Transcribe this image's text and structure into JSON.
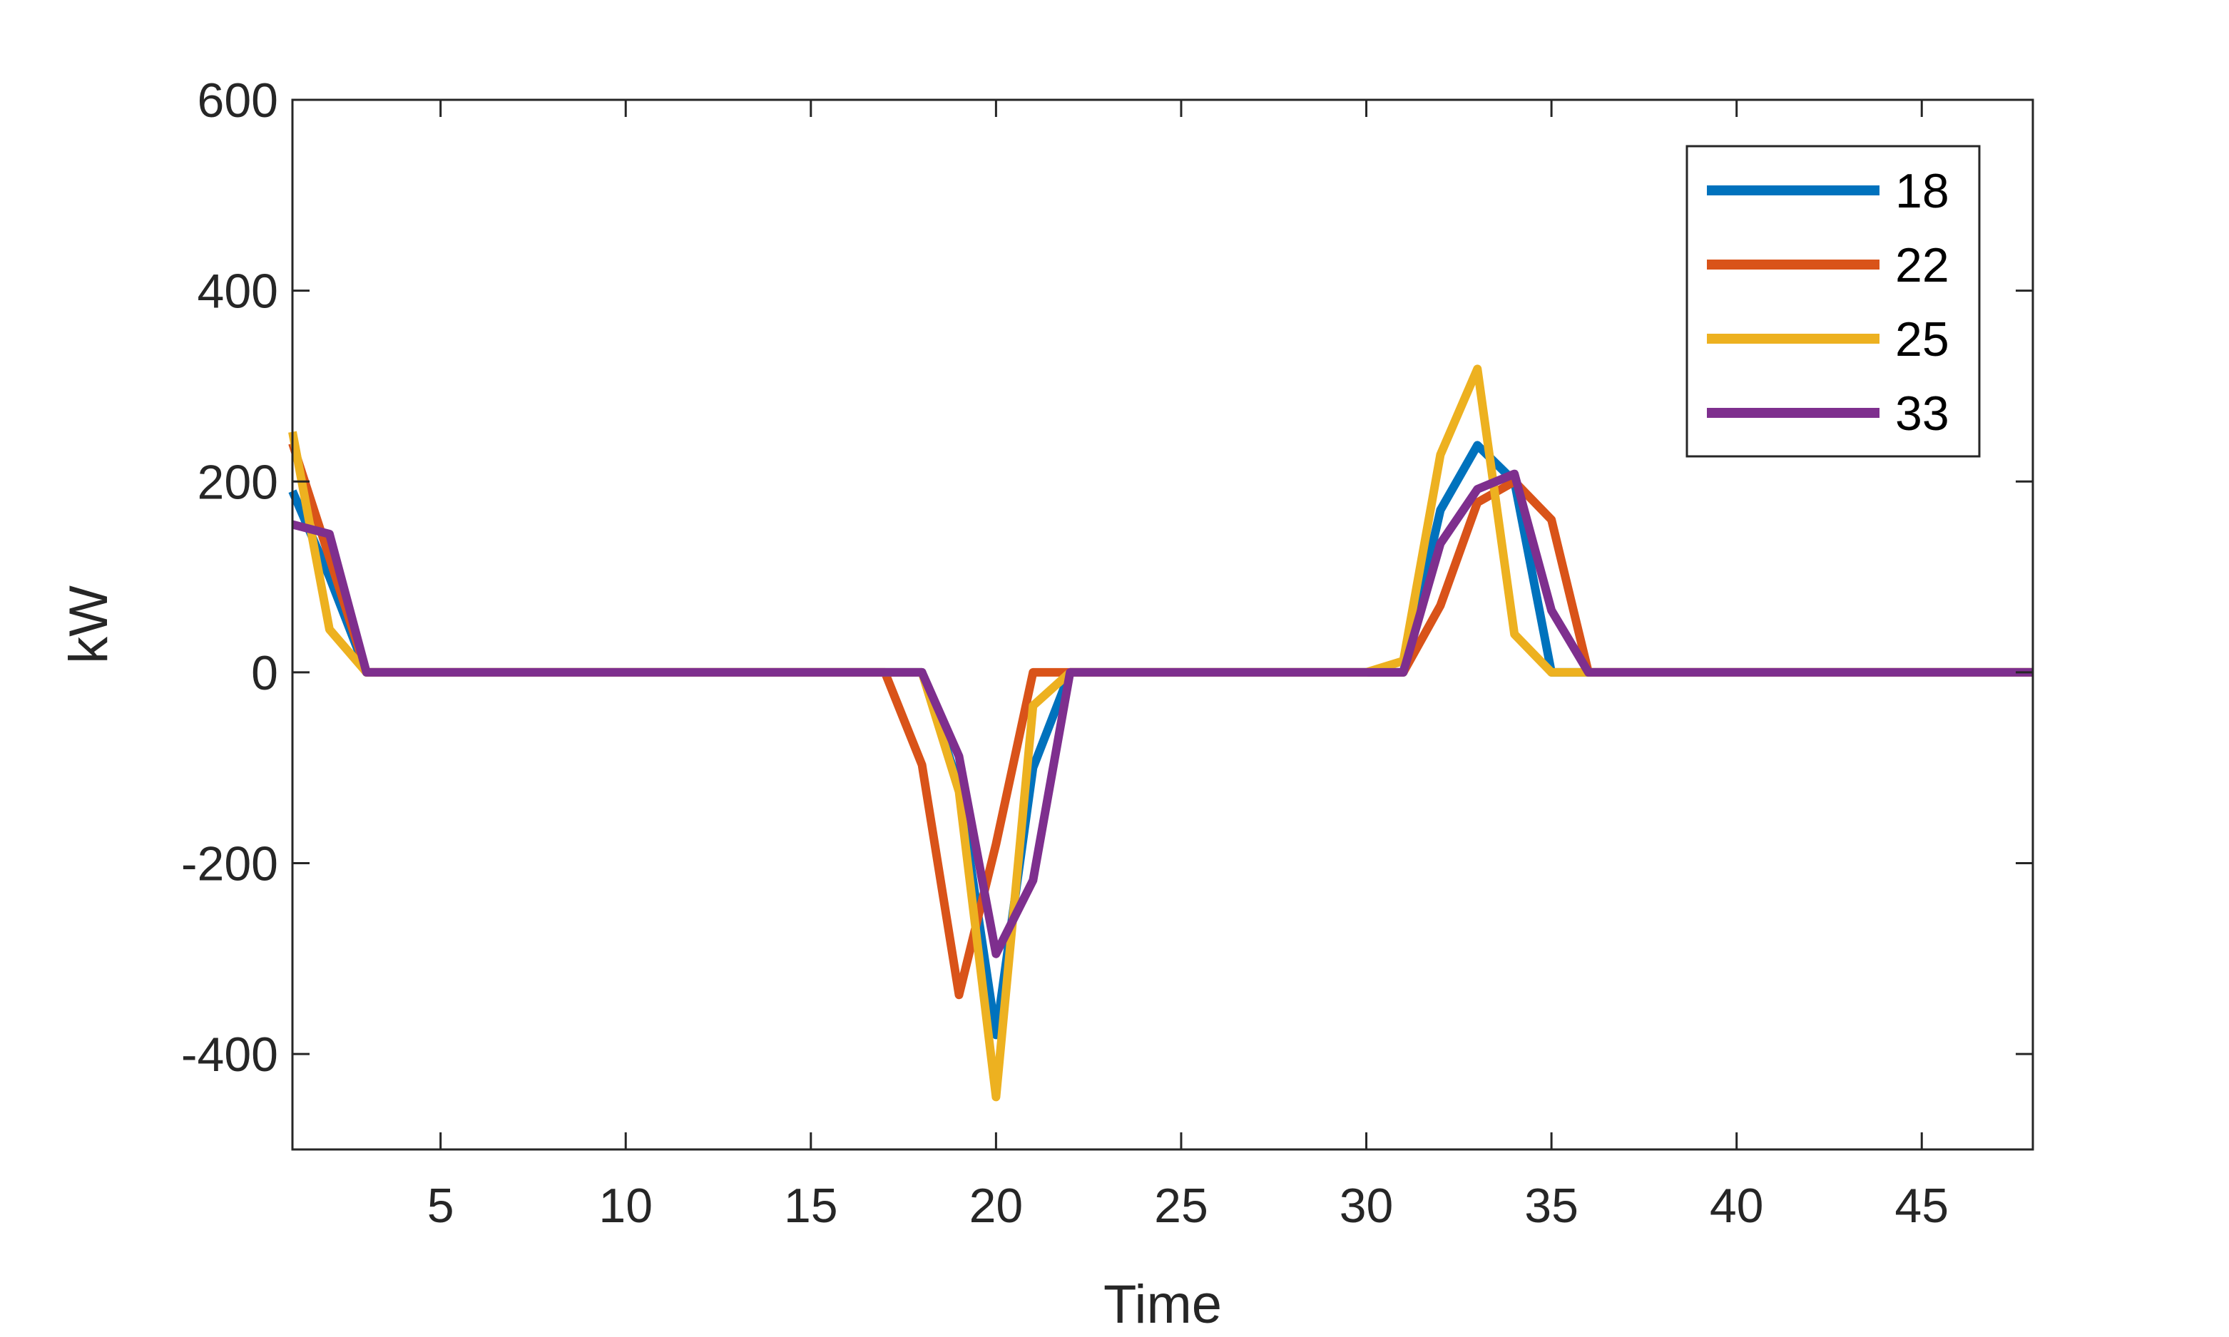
{
  "chart_data": {
    "type": "line",
    "title": "",
    "xlabel": "Time",
    "ylabel": "kW",
    "xlim": [
      1,
      48
    ],
    "ylim": [
      -500,
      600
    ],
    "xticks": [
      5,
      10,
      15,
      20,
      25,
      30,
      35,
      40,
      45
    ],
    "yticks": [
      -400,
      -200,
      0,
      200,
      400,
      600
    ],
    "grid": false,
    "legend_position": "top-right",
    "x": [
      1,
      2,
      3,
      4,
      5,
      6,
      7,
      8,
      9,
      10,
      11,
      12,
      13,
      14,
      15,
      16,
      17,
      18,
      19,
      20,
      21,
      22,
      23,
      24,
      25,
      26,
      27,
      28,
      29,
      30,
      31,
      32,
      33,
      34,
      35,
      36,
      37,
      38,
      39,
      40,
      41,
      42,
      43,
      44,
      45,
      46,
      47,
      48
    ],
    "series": [
      {
        "name": "18",
        "color": "#0072BD",
        "values": [
          190,
          100,
          0,
          0,
          0,
          0,
          0,
          0,
          0,
          0,
          0,
          0,
          0,
          0,
          0,
          0,
          0,
          0,
          -120,
          -380,
          -100,
          0,
          0,
          0,
          0,
          0,
          0,
          0,
          0,
          0,
          0,
          170,
          238,
          200,
          0,
          0,
          0,
          0,
          0,
          0,
          0,
          0,
          0,
          0,
          0,
          0,
          0,
          0
        ]
      },
      {
        "name": "22",
        "color": "#D95319",
        "values": [
          240,
          120,
          0,
          0,
          0,
          0,
          0,
          0,
          0,
          0,
          0,
          0,
          0,
          0,
          0,
          0,
          0,
          -97,
          -338,
          -180,
          0,
          0,
          0,
          0,
          0,
          0,
          0,
          0,
          0,
          0,
          0,
          70,
          178,
          200,
          160,
          0,
          0,
          0,
          0,
          0,
          0,
          0,
          0,
          0,
          0,
          0,
          0,
          0
        ]
      },
      {
        "name": "25",
        "color": "#EDB120",
        "values": [
          252,
          45,
          0,
          0,
          0,
          0,
          0,
          0,
          0,
          0,
          0,
          0,
          0,
          0,
          0,
          0,
          0,
          0,
          -125,
          -445,
          -35,
          0,
          0,
          0,
          0,
          0,
          0,
          0,
          0,
          0,
          12,
          228,
          318,
          40,
          0,
          0,
          0,
          0,
          0,
          0,
          0,
          0,
          0,
          0,
          0,
          0,
          0,
          0
        ]
      },
      {
        "name": "33",
        "color": "#7E2F8E",
        "values": [
          155,
          145,
          0,
          0,
          0,
          0,
          0,
          0,
          0,
          0,
          0,
          0,
          0,
          0,
          0,
          0,
          0,
          0,
          -88,
          -295,
          -218,
          0,
          0,
          0,
          0,
          0,
          0,
          0,
          0,
          0,
          0,
          135,
          192,
          208,
          65,
          0,
          0,
          0,
          0,
          0,
          0,
          0,
          0,
          0,
          0,
          0,
          0,
          0
        ]
      }
    ]
  }
}
